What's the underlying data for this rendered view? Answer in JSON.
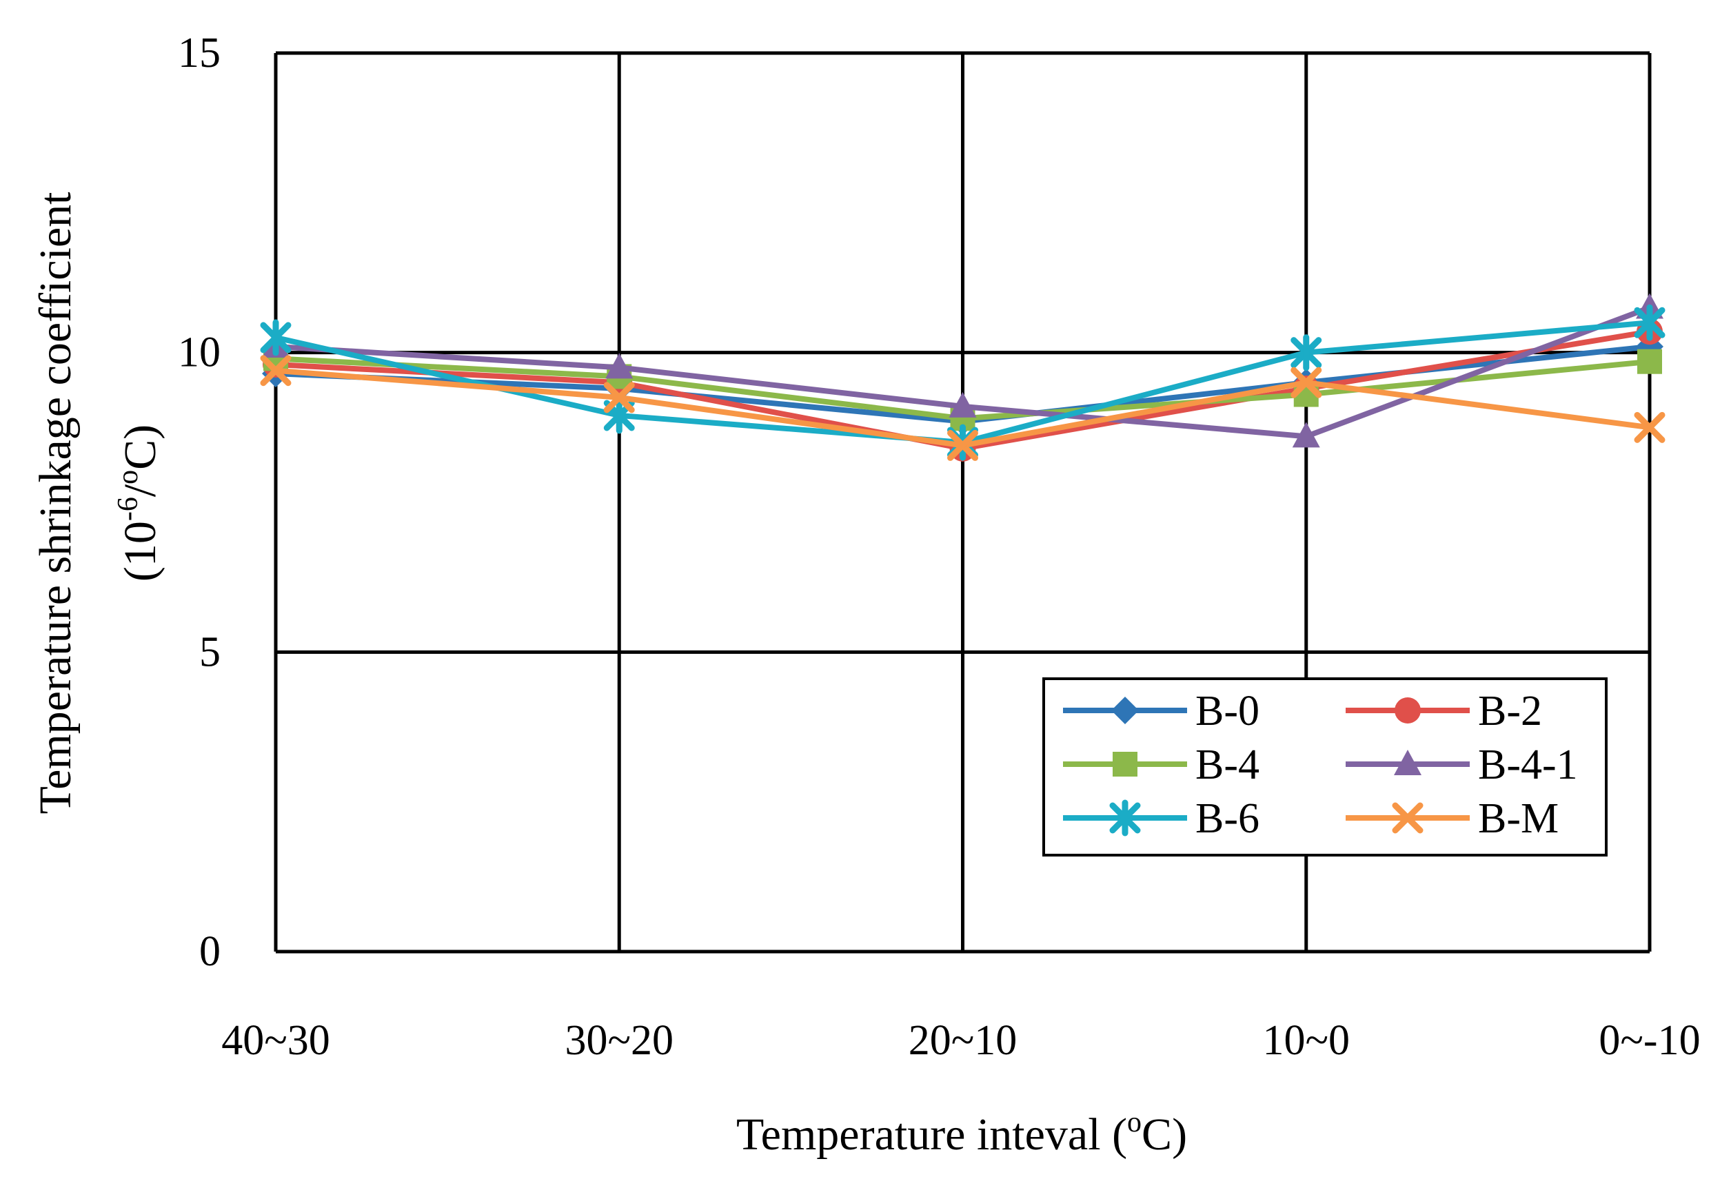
{
  "chart_data": {
    "type": "line",
    "title": "",
    "categories": [
      "40~30",
      "30~20",
      "20~10",
      "10~0",
      "0~-10"
    ],
    "xlabel": "Temperature inteval (°C)",
    "xlabel_parts": {
      "before": "Temperature inteval (",
      "sup": "o",
      "after": "C)"
    },
    "ylabel_line1": "Temperature shrinkage coefficient",
    "ylabel_line2_parts": {
      "before": "(10",
      "sup1": "-6",
      "mid": "/",
      "sup2": "o",
      "after": "C)"
    },
    "ylim": [
      0,
      15
    ],
    "yticks": [
      0,
      5,
      10,
      15
    ],
    "grid": true,
    "legend": {
      "position": "bottom-right",
      "columns": 2
    },
    "series": [
      {
        "name": "B-0",
        "color": "#2E75B6",
        "marker": "diamond",
        "values": [
          9.65,
          9.4,
          8.85,
          9.5,
          10.1
        ]
      },
      {
        "name": "B-2",
        "color": "#E0504A",
        "marker": "circle",
        "values": [
          9.8,
          9.5,
          8.4,
          9.4,
          10.35
        ]
      },
      {
        "name": "B-4",
        "color": "#8CB84A",
        "marker": "square",
        "values": [
          9.9,
          9.6,
          8.9,
          9.3,
          9.85
        ]
      },
      {
        "name": "B-4-1",
        "color": "#8064A2",
        "marker": "triangle",
        "values": [
          10.1,
          9.75,
          9.1,
          8.6,
          10.75
        ]
      },
      {
        "name": "B-6",
        "color": "#1BACC6",
        "marker": "asterisk",
        "values": [
          10.25,
          8.95,
          8.5,
          10.0,
          10.5
        ]
      },
      {
        "name": "B-M",
        "color": "#F79646",
        "marker": "x",
        "values": [
          9.7,
          9.25,
          8.45,
          9.5,
          8.75
        ]
      }
    ]
  }
}
